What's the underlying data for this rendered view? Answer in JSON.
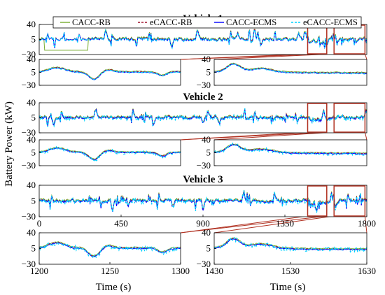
{
  "chart_data": {
    "type": "line",
    "ylabel": "Battery Power (kW)",
    "xlabel": "Time (s)",
    "legend": {
      "placement": "top",
      "entries": [
        "CACC-RB",
        "eCACC-RB",
        "CACC-ECMS",
        "eCACC-ECMS"
      ]
    },
    "series_styles": [
      {
        "name": "CACC-RB",
        "color": "#77ac30",
        "dash": "solid"
      },
      {
        "name": "eCACC-RB",
        "color": "#a2142f",
        "dash": "dashed"
      },
      {
        "name": "CACC-ECMS",
        "color": "#0000ff",
        "dash": "solid"
      },
      {
        "name": "eCACC-ECMS",
        "color": "#00d2ff",
        "dash": "dashed"
      }
    ],
    "highlight_color": "#b03020",
    "panels": [
      {
        "id": "v1",
        "title": "Vehicle 1",
        "xlim": [
          0,
          1800
        ],
        "ylim": [
          -30,
          40
        ],
        "yticks": [
          "40",
          "5",
          "−30"
        ],
        "xticks": [],
        "highlights": [
          [
            1475,
            1580
          ],
          [
            1620,
            1790
          ]
        ]
      },
      {
        "id": "v1a",
        "title": "",
        "xlim": [
          1200,
          1300
        ],
        "ylim": [
          -30,
          40
        ],
        "yticks": [
          "40",
          "5",
          "−30"
        ],
        "xticks": []
      },
      {
        "id": "v1b",
        "title": "",
        "xlim": [
          1430,
          1630
        ],
        "ylim": [
          -30,
          40
        ],
        "yticks": [
          "40",
          "5",
          "−30"
        ],
        "xticks": []
      },
      {
        "id": "v2",
        "title": "Vehicle 2",
        "xlim": [
          0,
          1800
        ],
        "ylim": [
          -30,
          40
        ],
        "yticks": [
          "40",
          "5",
          "−30"
        ],
        "xticks": [],
        "highlights": [
          [
            1475,
            1580
          ],
          [
            1620,
            1790
          ]
        ]
      },
      {
        "id": "v2a",
        "title": "",
        "xlim": [
          1200,
          1300
        ],
        "ylim": [
          -30,
          40
        ],
        "yticks": [
          "40",
          "5",
          "−30"
        ],
        "xticks": []
      },
      {
        "id": "v2b",
        "title": "",
        "xlim": [
          1430,
          1630
        ],
        "ylim": [
          -30,
          40
        ],
        "yticks": [
          "40",
          "5",
          "−30"
        ],
        "xticks": []
      },
      {
        "id": "v3",
        "title": "Vehicle 3",
        "xlim": [
          0,
          1800
        ],
        "ylim": [
          -30,
          40
        ],
        "yticks": [
          "40",
          "5",
          "−30"
        ],
        "xticks": [
          "0",
          "450",
          "900",
          "1350",
          "1800"
        ],
        "highlights": [
          [
            1475,
            1580
          ],
          [
            1620,
            1790
          ]
        ]
      },
      {
        "id": "v3a",
        "title": "",
        "xlim": [
          1200,
          1300
        ],
        "ylim": [
          -30,
          40
        ],
        "yticks": [
          "40",
          "5",
          "−30"
        ],
        "xticks": [
          "1200",
          "1250",
          "1300"
        ]
      },
      {
        "id": "v3b",
        "title": "",
        "xlim": [
          1430,
          1630
        ],
        "ylim": [
          -30,
          40
        ],
        "yticks": [
          "40",
          "5",
          "−30"
        ],
        "xticks": [
          "1430",
          "1530",
          "1630"
        ]
      }
    ]
  }
}
